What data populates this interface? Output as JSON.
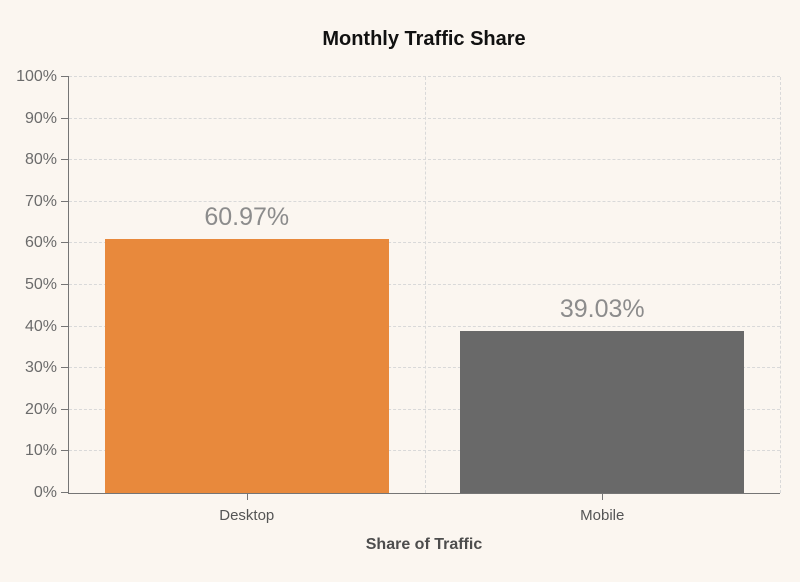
{
  "page": {
    "background_color": "#fbf6f0"
  },
  "header": {
    "title": "Monthly Traffic Share"
  },
  "chart_data": {
    "type": "bar",
    "title": "Monthly Traffic Share",
    "categories": [
      "Desktop",
      "Mobile"
    ],
    "values": [
      60.97,
      39.03
    ],
    "value_labels": [
      "60.97%",
      "39.03%"
    ],
    "bar_colors": [
      "#e8893c",
      "#696969"
    ],
    "xlabel": "Share of Traffic",
    "ylabel": "",
    "ylim": [
      0,
      100
    ],
    "ytick_step": 10,
    "ytick_labels": [
      "0%",
      "10%",
      "20%",
      "30%",
      "40%",
      "50%",
      "60%",
      "70%",
      "80%",
      "90%",
      "100%"
    ],
    "grid": {
      "horizontal": "dashed",
      "vertical": "dashed-at-category-boundaries",
      "grid_on": true
    },
    "legend": "none"
  },
  "style_colors": {
    "axis": "#757575",
    "grid": "#d9d9d9",
    "title_text": "#111111",
    "ytick_label": "#6b6b6b",
    "category_label": "#555555",
    "value_label": "#8c8c8c",
    "xlabel_text": "#4d4d4d"
  }
}
